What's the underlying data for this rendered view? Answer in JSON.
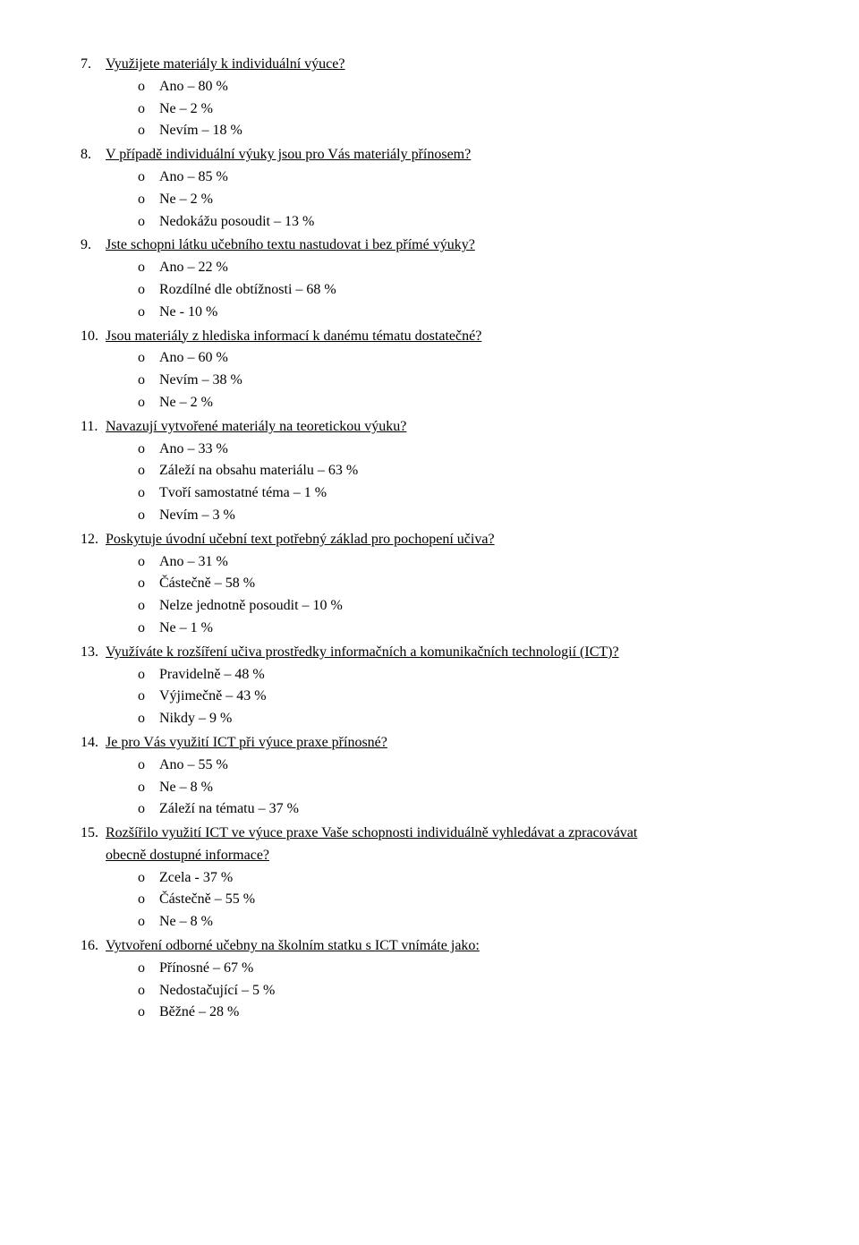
{
  "font_family": "Times New Roman",
  "font_size_pt": 12,
  "text_color": "#000000",
  "background_color": "#ffffff",
  "bullet_glyph": "o",
  "questions": [
    {
      "number": "7.",
      "text": "Využijete materiály k individuální výuce?",
      "continuation": null,
      "options": [
        "Ano – 80 %",
        "Ne – 2 %",
        "Nevím – 18 %"
      ]
    },
    {
      "number": "8.",
      "text": "V případě individuální výuky jsou pro Vás materiály přínosem?",
      "continuation": null,
      "options": [
        "Ano – 85 %",
        "Ne – 2 %",
        "Nedokážu posoudit – 13 %"
      ]
    },
    {
      "number": "9.",
      "text": "Jste schopni látku učebního textu nastudovat i bez přímé výuky?",
      "continuation": null,
      "options": [
        "Ano – 22 %",
        "Rozdílné dle obtížnosti – 68 %",
        "Ne - 10 %"
      ]
    },
    {
      "number": "10.",
      "text": "Jsou materiály z hlediska informací k danému tématu dostatečné?",
      "continuation": null,
      "options": [
        "Ano – 60 %",
        "Nevím – 38 %",
        "Ne – 2 %"
      ]
    },
    {
      "number": "11.",
      "text": "Navazují vytvořené materiály na teoretickou výuku?",
      "continuation": null,
      "options": [
        "Ano – 33 %",
        "Záleží na obsahu materiálu – 63 %",
        "Tvoří samostatné téma – 1 %",
        "Nevím – 3 %"
      ]
    },
    {
      "number": "12.",
      "text": "Poskytuje úvodní učební text potřebný základ pro pochopení učiva?",
      "continuation": null,
      "options": [
        "Ano – 31 %",
        "Částečně – 58 %",
        "Nelze jednotně posoudit – 10 %",
        "Ne – 1 %"
      ]
    },
    {
      "number": "13.",
      "text": "Využíváte k rozšíření učiva prostředky informačních a komunikačních technologií (ICT)?",
      "continuation": null,
      "options": [
        "Pravidelně – 48 %",
        "Výjimečně – 43 %",
        "Nikdy – 9 %"
      ]
    },
    {
      "number": "14.",
      "text": "Je pro Vás využití ICT při výuce praxe přínosné?",
      "continuation": null,
      "options": [
        "Ano – 55 %",
        "Ne – 8 %",
        "Záleží na tématu – 37 %"
      ]
    },
    {
      "number": "15.",
      "text": "Rozšířilo využití ICT ve výuce praxe Vaše schopnosti individuálně vyhledávat a zpracovávat",
      "continuation": "obecně dostupné informace?",
      "options": [
        "Zcela - 37 %",
        "Částečně – 55 %",
        "Ne – 8 %"
      ]
    },
    {
      "number": "16.",
      "text": "Vytvoření odborné učebny na školním statku s ICT vnímáte jako:",
      "continuation": null,
      "options": [
        "Přínosné – 67 %",
        "Nedostačující – 5 %",
        "Běžné – 28 %"
      ]
    }
  ]
}
